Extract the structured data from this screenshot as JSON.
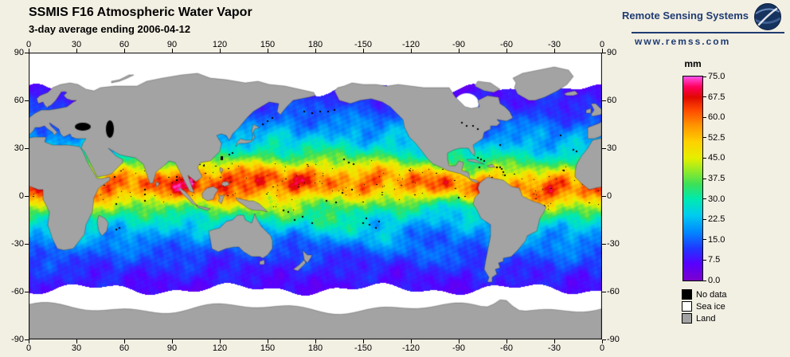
{
  "header": {
    "title": "SSMIS F16 Atmospheric Water Vapor",
    "subtitle": "3-day average ending 2006-04-12"
  },
  "branding": {
    "name": "Remote Sensing Systems",
    "url": "www.remss.com",
    "logo": "globe-icon"
  },
  "map": {
    "lon_ticks": [
      "0",
      "30",
      "60",
      "90",
      "120",
      "150",
      "180",
      "-150",
      "-120",
      "-90",
      "-60",
      "-30",
      "0"
    ],
    "lat_ticks": [
      "90",
      "60",
      "30",
      "0",
      "-30",
      "-60",
      "-90"
    ]
  },
  "colorbar": {
    "unit": "mm",
    "ticks": [
      "75.0",
      "67.5",
      "60.0",
      "52.5",
      "45.0",
      "37.5",
      "30.0",
      "22.5",
      "15.0",
      "7.5",
      "0.0"
    ],
    "min": 0,
    "max": 75,
    "gradient_stops": [
      [
        0.0,
        "#7d00cd"
      ],
      [
        0.08,
        "#5800ff"
      ],
      [
        0.16,
        "#1e3cff"
      ],
      [
        0.24,
        "#008cff"
      ],
      [
        0.32,
        "#00cdf0"
      ],
      [
        0.4,
        "#00ebaf"
      ],
      [
        0.47,
        "#3ce15a"
      ],
      [
        0.54,
        "#96eb28"
      ],
      [
        0.6,
        "#e6f000"
      ],
      [
        0.68,
        "#ffd200"
      ],
      [
        0.76,
        "#ff9600"
      ],
      [
        0.84,
        "#ff4600"
      ],
      [
        0.9,
        "#e10a00"
      ],
      [
        0.95,
        "#ff005a"
      ],
      [
        1.0,
        "#ff50e6"
      ]
    ]
  },
  "legend": {
    "items": [
      {
        "label": "No data",
        "color": "#000000"
      },
      {
        "label": "Sea ice",
        "color": "#ffffff"
      },
      {
        "label": "Land",
        "color": "#a3a3a3"
      }
    ]
  },
  "colors": {
    "background": "#f2efe3",
    "brand_navy": "#1f3c72",
    "land": "#a3a3a3",
    "sea_ice": "#ffffff",
    "no_data": "#000000",
    "map_border": "#000000"
  },
  "chart_data": {
    "type": "heatmap",
    "title": "SSMIS F16 Atmospheric Water Vapor",
    "subtitle": "3-day average ending 2006-04-12",
    "units": "mm",
    "value_range": [
      0,
      75
    ],
    "colorbar_ticks": [
      75.0,
      67.5,
      60.0,
      52.5,
      45.0,
      37.5,
      30.0,
      22.5,
      15.0,
      7.5,
      0.0
    ],
    "x_ticks_lon": [
      0,
      30,
      60,
      90,
      120,
      150,
      180,
      -150,
      -120,
      -90,
      -60,
      -30,
      0
    ],
    "y_ticks_lat": [
      90,
      60,
      30,
      0,
      -30,
      -60,
      -90
    ],
    "special_values": [
      "No data",
      "Sea ice",
      "Land"
    ],
    "legend_position": "right"
  }
}
